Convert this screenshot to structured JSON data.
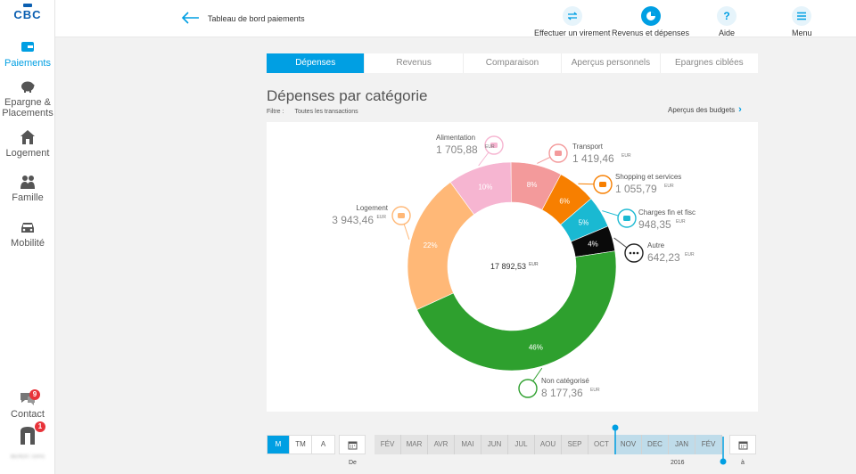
{
  "brand": {
    "name": "CBC"
  },
  "sidebar": {
    "items": [
      {
        "label": "Paiements",
        "icon": "wallet-icon"
      },
      {
        "label": "Epargne & Placements",
        "icon": "piggy-bank-icon"
      },
      {
        "label": "Logement",
        "icon": "house-icon"
      },
      {
        "label": "Famille",
        "icon": "family-icon"
      },
      {
        "label": "Mobilité",
        "icon": "car-icon"
      }
    ],
    "contact": {
      "label": "Contact",
      "badge": "9"
    },
    "profile": {
      "badge": "1"
    },
    "user_name": "BENOIT GIAS"
  },
  "topbar": {
    "title": "Tableau de bord paiements",
    "actions": [
      {
        "label": "Effectuer un virement",
        "icon": "transfer-icon"
      },
      {
        "label": "Revenus et dépenses",
        "icon": "pie-chart-icon"
      },
      {
        "label": "Aide",
        "icon": "help-icon"
      },
      {
        "label": "Menu",
        "icon": "menu-icon"
      }
    ]
  },
  "tabs": [
    "Dépenses",
    "Revenus",
    "Comparaison",
    "Aperçus personnels",
    "Epargnes ciblées"
  ],
  "section": {
    "title": "Dépenses par catégorie",
    "filter_label": "Filtre :",
    "filter_value": "Toutes les transactions",
    "budget_link": "Aperçus des budgets"
  },
  "chart_data": {
    "type": "pie",
    "title": "Dépenses par catégorie",
    "total": "17 892,53",
    "currency": "EUR",
    "slices": [
      {
        "name": "Alimentation",
        "amount": "1 705,88",
        "value": 10,
        "pct_label": "10%",
        "color": "#f6b5d1",
        "icon": "cart-icon"
      },
      {
        "name": "Transport",
        "amount": "1 419,46",
        "value": 8,
        "pct_label": "8%",
        "color": "#f39a9b",
        "icon": "car-icon"
      },
      {
        "name": "Shopping et services",
        "amount": "1 055,79",
        "value": 6,
        "pct_label": "6%",
        "color": "#f77f00",
        "icon": "tshirt-icon"
      },
      {
        "name": "Charges fin et fisc",
        "amount": "948,35",
        "value": 5,
        "pct_label": "5%",
        "color": "#1ab9d2",
        "icon": "gavel-icon"
      },
      {
        "name": "Autre",
        "amount": "642,23",
        "value": 4,
        "pct_label": "4%",
        "color": "#0a0a0a",
        "icon": "more-icon"
      },
      {
        "name": "Non catégorisé",
        "amount": "8 177,36",
        "value": 46,
        "pct_label": "46%",
        "color": "#2ea02e",
        "icon": "circle-icon"
      },
      {
        "name": "Logement",
        "amount": "3 943,46",
        "value": 22,
        "pct_label": "22%",
        "color": "#ffb877",
        "icon": "house-icon"
      }
    ]
  },
  "period": {
    "modes": [
      "M",
      "TM",
      "A"
    ],
    "active_mode": "M",
    "months": [
      "FÉV",
      "MAR",
      "AVR",
      "MAI",
      "JUN",
      "JUL",
      "AOU",
      "SEP",
      "OCT",
      "NOV",
      "DEC",
      "JAN",
      "FÉV"
    ],
    "selected_months": [
      "NOV",
      "DEC",
      "JAN",
      "FÉV"
    ],
    "from_label": "De",
    "to_label": "à",
    "year_label": "2016"
  },
  "colors": {
    "accent": "#009fe3",
    "badge": "#e8333a"
  }
}
